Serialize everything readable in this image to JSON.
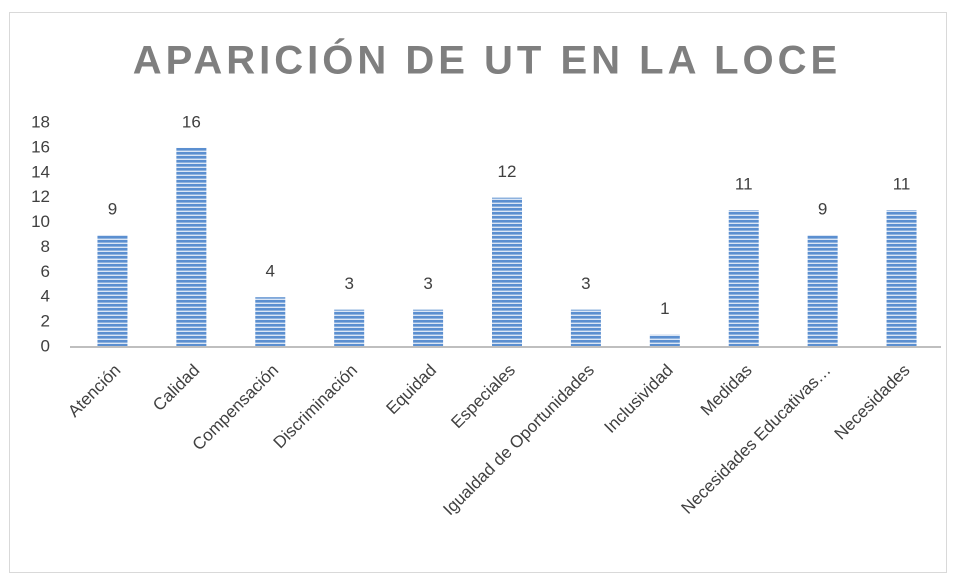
{
  "chart_data": {
    "type": "bar",
    "title": "APARICIÓN DE UT EN LA LOCE",
    "categories": [
      "Atención",
      "Calidad",
      "Compensación",
      "Discriminación",
      "Equidad",
      "Especiales",
      "Igualdad de Oportunidades",
      "Inclusividad",
      "Medidas",
      "Necesidades Educativas…",
      "Necesidades"
    ],
    "values": [
      9,
      16,
      4,
      3,
      3,
      12,
      3,
      1,
      11,
      9,
      11
    ],
    "color": "#5b8fd0",
    "ylim": [
      0,
      18
    ],
    "yticks": [
      0,
      2,
      4,
      6,
      8,
      10,
      12,
      14,
      16,
      18
    ],
    "grid": false,
    "data_labels": true
  }
}
